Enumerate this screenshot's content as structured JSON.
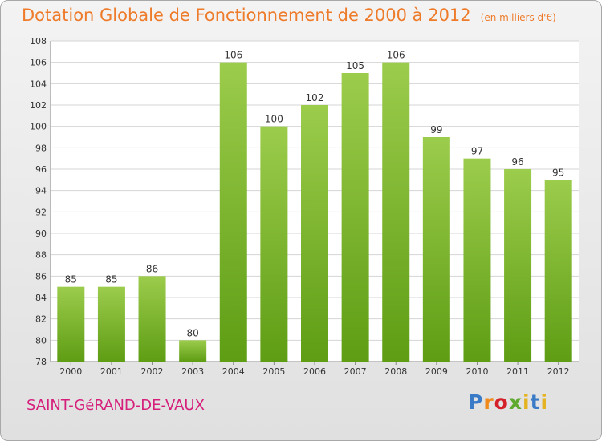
{
  "header": {
    "title": "Dotation Globale de Fonctionnement de 2000 à 2012",
    "subtitle": "(en milliers d'€)"
  },
  "footer": {
    "commune": "SAINT-GéRAND-DE-VAUX",
    "logo": "Proxiti"
  },
  "colors": {
    "bar_top": "#9ccc4c",
    "bar_bottom": "#5e9d14",
    "title": "#ee7b2a",
    "commune": "#d61f7b"
  },
  "chart_data": {
    "type": "bar",
    "categories": [
      "2000",
      "2001",
      "2002",
      "2003",
      "2004",
      "2005",
      "2006",
      "2007",
      "2008",
      "2009",
      "2010",
      "2011",
      "2012"
    ],
    "values": [
      85,
      85,
      86,
      80,
      106,
      100,
      102,
      105,
      106,
      99,
      97,
      96,
      95
    ],
    "ylim": [
      78,
      108
    ],
    "yticks": [
      78,
      80,
      82,
      84,
      86,
      88,
      90,
      92,
      94,
      96,
      98,
      100,
      102,
      104,
      106,
      108
    ],
    "grid": true
  }
}
